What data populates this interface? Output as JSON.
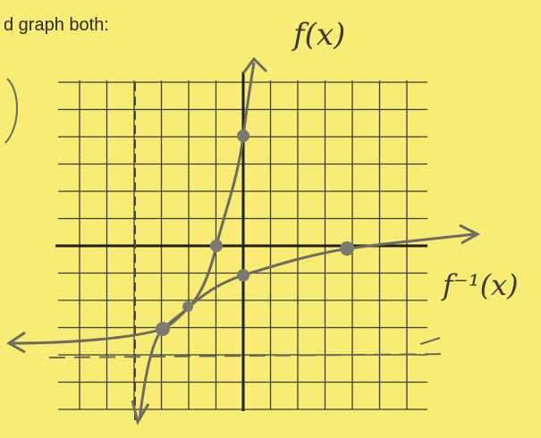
{
  "header": {
    "instruction": "d graph both:"
  },
  "labels": {
    "f": "f(x)",
    "f_inverse": "f⁻¹(x)"
  }
}
